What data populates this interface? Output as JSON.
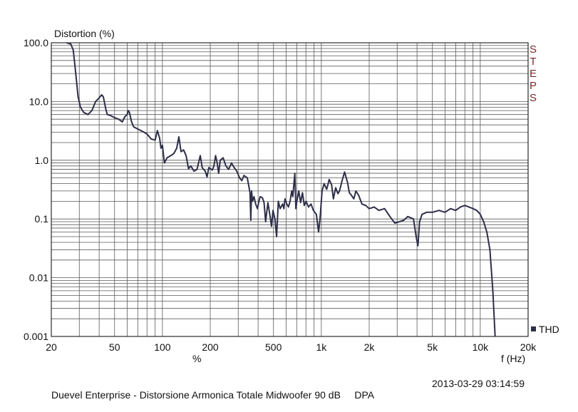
{
  "chart_data": {
    "type": "line",
    "title": "Distortion (%)",
    "xlabel": "f (Hz)",
    "x_unit_label": "%",
    "x_scale": "log",
    "y_scale": "log",
    "xlim": [
      20,
      20000
    ],
    "ylim": [
      0.001,
      100
    ],
    "x_ticks": [
      {
        "value": 20,
        "label": "20"
      },
      {
        "value": 50,
        "label": "50"
      },
      {
        "value": 100,
        "label": "100"
      },
      {
        "value": 200,
        "label": "200"
      },
      {
        "value": 500,
        "label": "500"
      },
      {
        "value": 1000,
        "label": "1k"
      },
      {
        "value": 2000,
        "label": "2k"
      },
      {
        "value": 5000,
        "label": "5k"
      },
      {
        "value": 10000,
        "label": "10k"
      },
      {
        "value": 20000,
        "label": "20k"
      }
    ],
    "y_ticks": [
      {
        "value": 100,
        "label": "100.0"
      },
      {
        "value": 10,
        "label": "10.0"
      },
      {
        "value": 1,
        "label": "1.0"
      },
      {
        "value": 0.1,
        "label": "0.1"
      },
      {
        "value": 0.01,
        "label": "0.01"
      },
      {
        "value": 0.001,
        "label": "0.001"
      }
    ],
    "grid": true,
    "side_label": "STEPS",
    "legend_position": "bottom-right",
    "series": [
      {
        "name": "THD",
        "color": "#2e2e4a",
        "points": [
          [
            25,
            100
          ],
          [
            26.5,
            95
          ],
          [
            27.5,
            75
          ],
          [
            28.5,
            30
          ],
          [
            29.5,
            12
          ],
          [
            30.5,
            8
          ],
          [
            32,
            6.5
          ],
          [
            34,
            6
          ],
          [
            36,
            7
          ],
          [
            38,
            10
          ],
          [
            40,
            11.5
          ],
          [
            41.5,
            13
          ],
          [
            42.5,
            12
          ],
          [
            44,
            7.5
          ],
          [
            45,
            6
          ],
          [
            47,
            5.8
          ],
          [
            50,
            5.3
          ],
          [
            53,
            5
          ],
          [
            56,
            4.5
          ],
          [
            58,
            5.5
          ],
          [
            60,
            6
          ],
          [
            61,
            7
          ],
          [
            62,
            6.5
          ],
          [
            64,
            4.5
          ],
          [
            66,
            3.7
          ],
          [
            70,
            3.4
          ],
          [
            75,
            3.1
          ],
          [
            80,
            2.8
          ],
          [
            85,
            2.3
          ],
          [
            90,
            2.2
          ],
          [
            93,
            3.2
          ],
          [
            96,
            2.4
          ],
          [
            98,
            1.6
          ],
          [
            100,
            1.8
          ],
          [
            103,
            0.9
          ],
          [
            107,
            1.1
          ],
          [
            113,
            1.2
          ],
          [
            118,
            1.3
          ],
          [
            123,
            1.6
          ],
          [
            127,
            2.5
          ],
          [
            131,
            1.4
          ],
          [
            136,
            1.5
          ],
          [
            141,
            1.2
          ],
          [
            146,
            0.72
          ],
          [
            151,
            0.8
          ],
          [
            158,
            0.65
          ],
          [
            165,
            0.7
          ],
          [
            173,
            1.2
          ],
          [
            178,
            0.75
          ],
          [
            186,
            0.65
          ],
          [
            191,
            0.52
          ],
          [
            196,
            0.75
          ],
          [
            206,
            0.68
          ],
          [
            211,
            0.8
          ],
          [
            216,
            1.2
          ],
          [
            221,
            0.9
          ],
          [
            226,
            0.6
          ],
          [
            231,
            1.0
          ],
          [
            241,
            1.1
          ],
          [
            251,
            0.8
          ],
          [
            261,
            0.7
          ],
          [
            272,
            0.9
          ],
          [
            283,
            0.75
          ],
          [
            294,
            0.65
          ],
          [
            306,
            0.5
          ],
          [
            316,
            0.45
          ],
          [
            326,
            0.55
          ],
          [
            342,
            0.5
          ],
          [
            356,
            0.28
          ],
          [
            360,
            0.095
          ],
          [
            364,
            0.3
          ],
          [
            369,
            0.2
          ],
          [
            377,
            0.24
          ],
          [
            386,
            0.18
          ],
          [
            396,
            0.15
          ],
          [
            405,
            0.2
          ],
          [
            412,
            0.24
          ],
          [
            426,
            0.23
          ],
          [
            436,
            0.19
          ],
          [
            446,
            0.09
          ],
          [
            461,
            0.19
          ],
          [
            476,
            0.11
          ],
          [
            486,
            0.075
          ],
          [
            496,
            0.14
          ],
          [
            511,
            0.1
          ],
          [
            523,
            0.05
          ],
          [
            536,
            0.2
          ],
          [
            551,
            0.15
          ],
          [
            571,
            0.18
          ],
          [
            581,
            0.15
          ],
          [
            591,
            0.22
          ],
          [
            606,
            0.18
          ],
          [
            621,
            0.16
          ],
          [
            636,
            0.2
          ],
          [
            651,
            0.3
          ],
          [
            661,
            0.24
          ],
          [
            681,
            0.6
          ],
          [
            691,
            0.15
          ],
          [
            701,
            0.2
          ],
          [
            721,
            0.3
          ],
          [
            741,
            0.19
          ],
          [
            761,
            0.28
          ],
          [
            781,
            0.17
          ],
          [
            801,
            0.2
          ],
          [
            831,
            0.16
          ],
          [
            861,
            0.18
          ],
          [
            891,
            0.14
          ],
          [
            931,
            0.12
          ],
          [
            961,
            0.06
          ],
          [
            981,
            0.1
          ],
          [
            1011,
            0.3
          ],
          [
            1041,
            0.4
          ],
          [
            1081,
            0.32
          ],
          [
            1121,
            0.47
          ],
          [
            1161,
            0.38
          ],
          [
            1191,
            0.22
          ],
          [
            1231,
            0.34
          ],
          [
            1271,
            0.27
          ],
          [
            1301,
            0.3
          ],
          [
            1351,
            0.45
          ],
          [
            1401,
            0.63
          ],
          [
            1461,
            0.42
          ],
          [
            1501,
            0.28
          ],
          [
            1551,
            0.25
          ],
          [
            1601,
            0.22
          ],
          [
            1651,
            0.3
          ],
          [
            1721,
            0.25
          ],
          [
            1801,
            0.18
          ],
          [
            1901,
            0.17
          ],
          [
            2001,
            0.15
          ],
          [
            2151,
            0.16
          ],
          [
            2301,
            0.14
          ],
          [
            2501,
            0.15
          ],
          [
            2701,
            0.11
          ],
          [
            2901,
            0.085
          ],
          [
            3101,
            0.09
          ],
          [
            3301,
            0.095
          ],
          [
            3501,
            0.11
          ],
          [
            3801,
            0.1
          ],
          [
            3951,
            0.05
          ],
          [
            4051,
            0.035
          ],
          [
            4151,
            0.09
          ],
          [
            4301,
            0.12
          ],
          [
            4601,
            0.13
          ],
          [
            5001,
            0.13
          ],
          [
            5501,
            0.14
          ],
          [
            6001,
            0.13
          ],
          [
            6501,
            0.15
          ],
          [
            7001,
            0.14
          ],
          [
            7501,
            0.16
          ],
          [
            8001,
            0.17
          ],
          [
            8501,
            0.16
          ],
          [
            9001,
            0.15
          ],
          [
            9501,
            0.14
          ],
          [
            10001,
            0.12
          ],
          [
            10501,
            0.09
          ],
          [
            11001,
            0.06
          ],
          [
            11501,
            0.03
          ],
          [
            12001,
            0.006
          ],
          [
            12401,
            0.001
          ]
        ]
      }
    ]
  },
  "footer": {
    "timestamp": "2013-03-29 03:14:59",
    "caption": "Duevel Enterprise - Distorsione Armonica Totale Midwoofer 90 dB     DPA"
  }
}
